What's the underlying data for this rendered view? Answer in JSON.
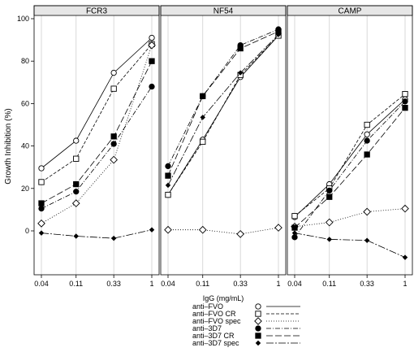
{
  "chart_data": {
    "type": "line",
    "layout": "faceted, 3 panels side by side, shared y axis",
    "ylabel": "Growth Inhibition (%)",
    "xlabel": "IgG (mg/mL)",
    "x_scale": "log",
    "x": [
      0.04,
      0.11,
      0.33,
      1
    ],
    "x_tick_labels": [
      "0.04",
      "0.11",
      "0.33",
      "1"
    ],
    "ylim": [
      -20,
      100
    ],
    "y_ticks": [
      0,
      20,
      40,
      60,
      80,
      100
    ],
    "grid": "vertical gridlines at each x tick, per panel",
    "legend_placement": "bottom-center",
    "panels": [
      {
        "title": "FCR3",
        "series": [
          {
            "name": "anti–FVO",
            "values": [
              29.5,
              42.5,
              74.5,
              91
            ]
          },
          {
            "name": "anti–FVO CR",
            "values": [
              23,
              34,
              67,
              88
            ]
          },
          {
            "name": "anti–FVO spec",
            "values": [
              3.5,
              13,
              33.5,
              87.5
            ]
          },
          {
            "name": "anti–3D7",
            "values": [
              10.5,
              18.5,
              41,
              68
            ]
          },
          {
            "name": "anti–3D7 CR",
            "values": [
              13,
              22,
              44.5,
              80
            ]
          },
          {
            "name": "anti–3D7 spec",
            "values": [
              -1,
              -2.5,
              -3.5,
              0.5
            ]
          }
        ]
      },
      {
        "title": "NF54",
        "series": [
          {
            "name": "anti–FVO",
            "values": [
              17,
              43,
              72.5,
              92
            ]
          },
          {
            "name": "anti–FVO CR",
            "values": [
              17,
              42,
              73.5,
              92
            ]
          },
          {
            "name": "anti–FVO spec",
            "values": [
              0.5,
              0.5,
              -1.5,
              1.5
            ]
          },
          {
            "name": "anti–3D7",
            "values": [
              30.5,
              63.5,
              87.5,
              95
            ]
          },
          {
            "name": "anti–3D7 CR",
            "values": [
              26,
              63.5,
              86,
              94
            ]
          },
          {
            "name": "anti–3D7 spec",
            "values": [
              21.5,
              53.5,
              74.5,
              92.5
            ]
          }
        ]
      },
      {
        "title": "CAMP",
        "series": [
          {
            "name": "anti–FVO",
            "values": [
              6.5,
              22,
              45.5,
              62
            ]
          },
          {
            "name": "anti–FVO CR",
            "values": [
              7,
              20,
              50,
              64.5
            ]
          },
          {
            "name": "anti–FVO spec",
            "values": [
              2,
              4,
              9,
              10.5
            ]
          },
          {
            "name": "anti–3D7",
            "values": [
              -3,
              19,
              42.5,
              61
            ]
          },
          {
            "name": "anti–3D7 CR",
            "values": [
              1.5,
              16,
              36,
              58
            ]
          },
          {
            "name": "anti–3D7 spec",
            "values": [
              -1,
              -4,
              -4.5,
              -12.5
            ]
          }
        ]
      }
    ],
    "legend": [
      {
        "name": "anti–FVO",
        "marker": "open-circle",
        "dash": "solid"
      },
      {
        "name": "anti–FVO CR",
        "marker": "open-square",
        "dash": "short-dash"
      },
      {
        "name": "anti–FVO spec",
        "marker": "open-diamond",
        "dash": "dotted"
      },
      {
        "name": "anti–3D7",
        "marker": "filled-circle",
        "dash": "dash-dot"
      },
      {
        "name": "anti–3D7 CR",
        "marker": "filled-square",
        "dash": "long-dash"
      },
      {
        "name": "anti–3D7 spec",
        "marker": "filled-diamond",
        "dash": "long-dash-dot"
      }
    ],
    "colors": {
      "line": "#000000",
      "strip": "#e6e6e6",
      "grid": "#cfcfcf",
      "frame": "#000000"
    }
  }
}
